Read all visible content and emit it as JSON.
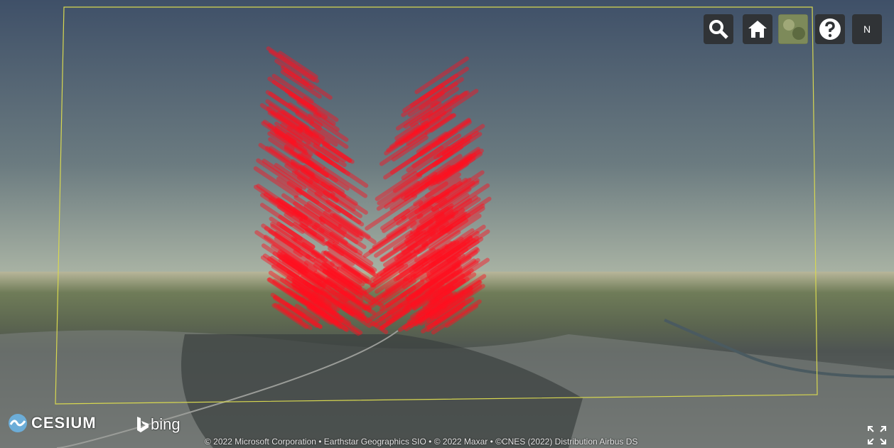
{
  "logos": {
    "cesium": "CESIUM",
    "bing": "bing"
  },
  "toolbar": {
    "navigation": "N"
  },
  "credits": "© 2022 Microsoft Corporation • Earthstar Geographics SIO • © 2022 Maxar • ©CNES (2022) Distribution Airbus DS"
}
